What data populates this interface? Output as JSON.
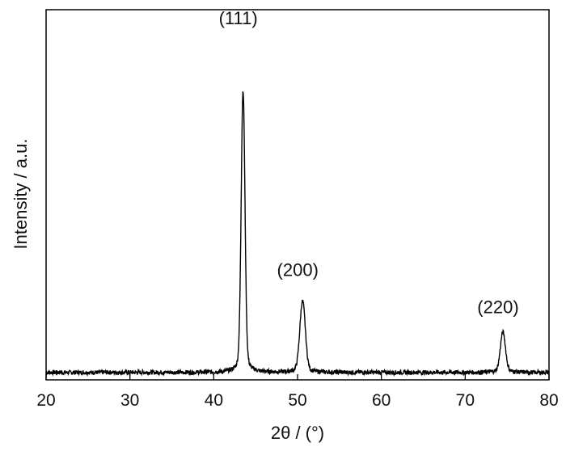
{
  "chart_data": {
    "type": "line",
    "title": "",
    "xlabel": "2θ / (°)",
    "ylabel": "Intensity / a.u.",
    "xlim": [
      20,
      80
    ],
    "ylim": [
      0,
      1.0
    ],
    "x_ticks": [
      20,
      30,
      40,
      50,
      60,
      70,
      80
    ],
    "x_tick_labels": [
      "20",
      "30",
      "40",
      "50",
      "60",
      "70",
      "80"
    ],
    "y_ticks_shown": false,
    "grid": false,
    "legend": "none",
    "line_color": "#000000",
    "baseline": 0.02,
    "peaks": [
      {
        "x": 43.5,
        "height": 0.93,
        "label": "(111)"
      },
      {
        "x": 50.6,
        "height": 0.25,
        "label": "(200)"
      },
      {
        "x": 74.5,
        "height": 0.15,
        "label": "(220)"
      }
    ]
  }
}
